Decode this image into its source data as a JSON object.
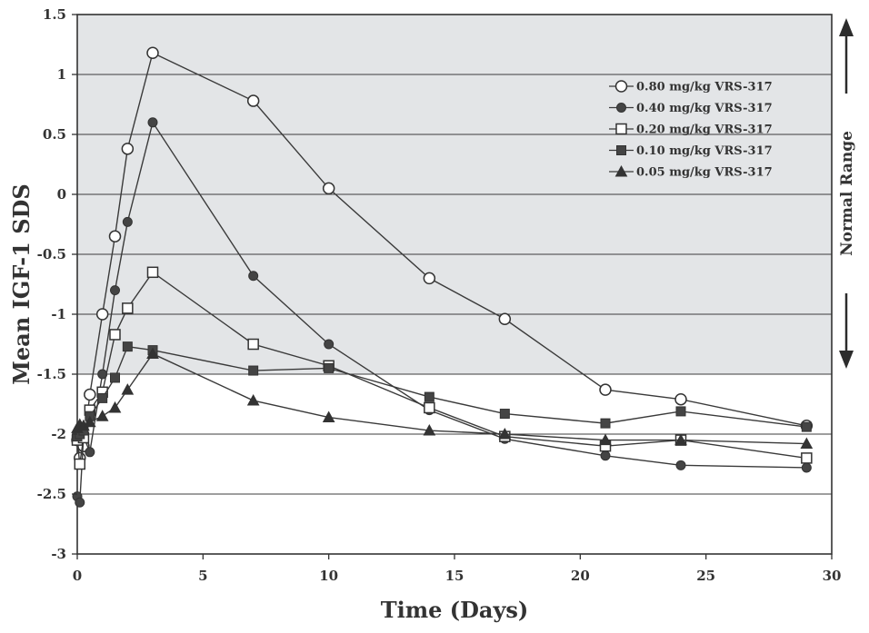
{
  "chart_data": {
    "type": "line",
    "xlabel": "Time (Days)",
    "ylabel": "Mean IGF-1 SDS",
    "xlim": [
      0,
      30
    ],
    "ylim": [
      -3,
      1.5
    ],
    "x_ticks": [
      0,
      5,
      10,
      15,
      20,
      25,
      30
    ],
    "y_ticks": [
      1.5,
      1,
      0.5,
      0,
      -0.5,
      -1,
      -1.5,
      -2,
      -2.5,
      -3
    ],
    "x_tick_labels": [
      "0",
      "5",
      "10",
      "15",
      "20",
      "25",
      "30"
    ],
    "y_tick_labels": [
      "1.5",
      "1",
      "0.5",
      "0",
      "-0.5",
      "-1",
      "-1.5",
      "-2",
      "-2.5",
      "-3"
    ],
    "grid": "horizontal",
    "shaded_band": {
      "from": -1.5,
      "to": 1.5,
      "color": "#e3e5e7"
    },
    "normal_range_label": "Normal Range",
    "legend_position": "top-right",
    "series": [
      {
        "name": "0.80 mg/kg VRS-317",
        "marker": "open-circle",
        "x": [
          0,
          0.1,
          0.25,
          0.5,
          1,
          1.5,
          2,
          3,
          7,
          10,
          14,
          17,
          21,
          24,
          29
        ],
        "y": [
          -2.05,
          -2.2,
          -2.1,
          -1.67,
          -1.0,
          -0.35,
          0.38,
          1.18,
          0.78,
          0.05,
          -0.7,
          -1.04,
          -1.63,
          -1.71,
          -1.93
        ]
      },
      {
        "name": "0.40 mg/kg VRS-317",
        "marker": "filled-circle",
        "x": [
          0,
          0.1,
          0.25,
          0.5,
          1,
          1.5,
          2,
          3,
          7,
          10,
          14,
          17,
          21,
          24,
          29
        ],
        "y": [
          -2.52,
          -2.57,
          -2.02,
          -2.15,
          -1.5,
          -0.8,
          -0.23,
          0.6,
          -0.68,
          -1.25,
          -1.8,
          -2.04,
          -2.18,
          -2.26,
          -2.28
        ]
      },
      {
        "name": "0.20 mg/kg VRS-317",
        "marker": "open-square",
        "x": [
          0,
          0.1,
          0.25,
          0.5,
          1,
          1.5,
          2,
          3,
          7,
          10,
          14,
          17,
          21,
          24,
          29
        ],
        "y": [
          -2.05,
          -2.25,
          -2.03,
          -1.8,
          -1.65,
          -1.17,
          -0.95,
          -0.65,
          -1.25,
          -1.43,
          -1.78,
          -2.02,
          -2.1,
          -2.05,
          -2.2
        ]
      },
      {
        "name": "0.10 mg/kg VRS-317",
        "marker": "filled-square",
        "x": [
          0,
          0.1,
          0.25,
          0.5,
          1,
          1.5,
          2,
          3,
          7,
          10,
          14,
          17,
          21,
          24,
          29
        ],
        "y": [
          -2.02,
          -2.0,
          -1.97,
          -1.85,
          -1.7,
          -1.53,
          -1.27,
          -1.3,
          -1.47,
          -1.45,
          -1.69,
          -1.83,
          -1.91,
          -1.81,
          -1.94
        ]
      },
      {
        "name": "0.05 mg/kg VRS-317",
        "marker": "filled-triangle",
        "x": [
          0,
          0.1,
          0.25,
          0.5,
          1,
          1.5,
          2,
          3,
          7,
          10,
          14,
          17,
          21,
          24,
          29
        ],
        "y": [
          -1.95,
          -1.92,
          -1.93,
          -1.9,
          -1.85,
          -1.78,
          -1.63,
          -1.33,
          -1.72,
          -1.86,
          -1.97,
          -2.0,
          -2.05,
          -2.05,
          -2.08
        ]
      }
    ]
  }
}
